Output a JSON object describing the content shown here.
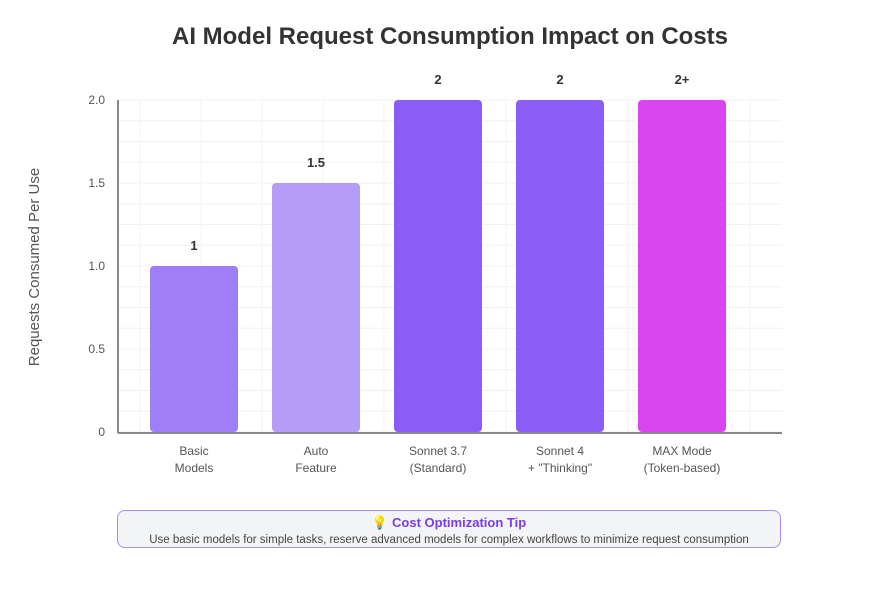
{
  "chart_data": {
    "type": "bar",
    "title": "AI Model Request Consumption Impact on Costs",
    "ylabel": "Requests Consumed Per Use",
    "xlabel": "",
    "ylim": [
      0,
      2.0
    ],
    "yticks": [
      "0",
      "0.5",
      "1.0",
      "1.5",
      "2.0"
    ],
    "ytick_values": [
      0,
      0.5,
      1.0,
      1.5,
      2.0
    ],
    "grid": true,
    "categories": [
      [
        "Basic",
        "Models"
      ],
      [
        "Auto",
        "Feature"
      ],
      [
        "Sonnet 3.7",
        "(Standard)"
      ],
      [
        "Sonnet 4",
        "+ \"Thinking\""
      ],
      [
        "MAX Mode",
        "(Token-based)"
      ]
    ],
    "values": [
      1,
      1.5,
      2,
      2,
      2
    ],
    "data_labels": [
      "1",
      "1.5",
      "2",
      "2",
      "2+"
    ],
    "colors": [
      "#a07ef8",
      "#b69cf9",
      "#8b5cf6",
      "#8b5cf6",
      "#d946ef"
    ]
  },
  "tip": {
    "icon": "lightbulb-icon",
    "bulb_glyph": "💡",
    "title": "Cost Optimization Tip",
    "text": "Use basic models for simple tasks, reserve advanced models for complex workflows to minimize request consumption"
  }
}
